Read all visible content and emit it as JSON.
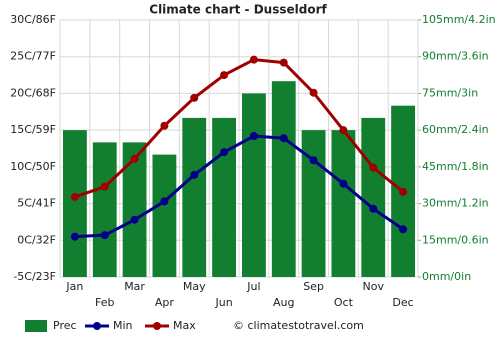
{
  "chart_data": {
    "type": "bar",
    "title": "Climate chart - Dusseldorf",
    "categories": [
      "Jan",
      "Feb",
      "Mar",
      "Apr",
      "May",
      "Jun",
      "Jul",
      "Aug",
      "Sep",
      "Oct",
      "Nov",
      "Dec"
    ],
    "series": [
      {
        "name": "Prec",
        "type": "bar",
        "axis": "y2",
        "color": "#117f2f",
        "values": [
          60,
          55,
          55,
          50,
          65,
          65,
          75,
          80,
          60,
          60,
          65,
          70
        ]
      },
      {
        "name": "Min",
        "type": "line",
        "color": "#00008b",
        "values": [
          0.5,
          0.7,
          2.8,
          5.3,
          8.9,
          12.0,
          14.2,
          13.9,
          10.9,
          7.7,
          4.3,
          1.5
        ]
      },
      {
        "name": "Max",
        "type": "line",
        "color": "#a00000",
        "values": [
          5.9,
          7.3,
          11.1,
          15.6,
          19.4,
          22.5,
          24.6,
          24.2,
          20.1,
          15.0,
          9.9,
          6.6
        ]
      }
    ],
    "ylim": [
      -5,
      30
    ],
    "yticks": [
      {
        "value": -5,
        "label": "-5C/23F"
      },
      {
        "value": 0,
        "label": "0C/32F"
      },
      {
        "value": 5,
        "label": "5C/41F"
      },
      {
        "value": 10,
        "label": "10C/50F"
      },
      {
        "value": 15,
        "label": "15C/59F"
      },
      {
        "value": 20,
        "label": "20C/68F"
      },
      {
        "value": 25,
        "label": "25C/77F"
      },
      {
        "value": 30,
        "label": "30C/86F"
      }
    ],
    "y2lim": [
      0,
      105
    ],
    "y2ticks": [
      {
        "value": 0,
        "label": "0mm/0in"
      },
      {
        "value": 15,
        "label": "15mm/0.6in"
      },
      {
        "value": 30,
        "label": "30mm/1.2in"
      },
      {
        "value": 45,
        "label": "45mm/1.8in"
      },
      {
        "value": 60,
        "label": "60mm/2.4in"
      },
      {
        "value": 75,
        "label": "75mm/3in"
      },
      {
        "value": 90,
        "label": "90mm/3.6in"
      },
      {
        "value": 105,
        "label": "105mm/4.2in"
      }
    ],
    "grid": true,
    "source": "© climatestotravel.com"
  }
}
